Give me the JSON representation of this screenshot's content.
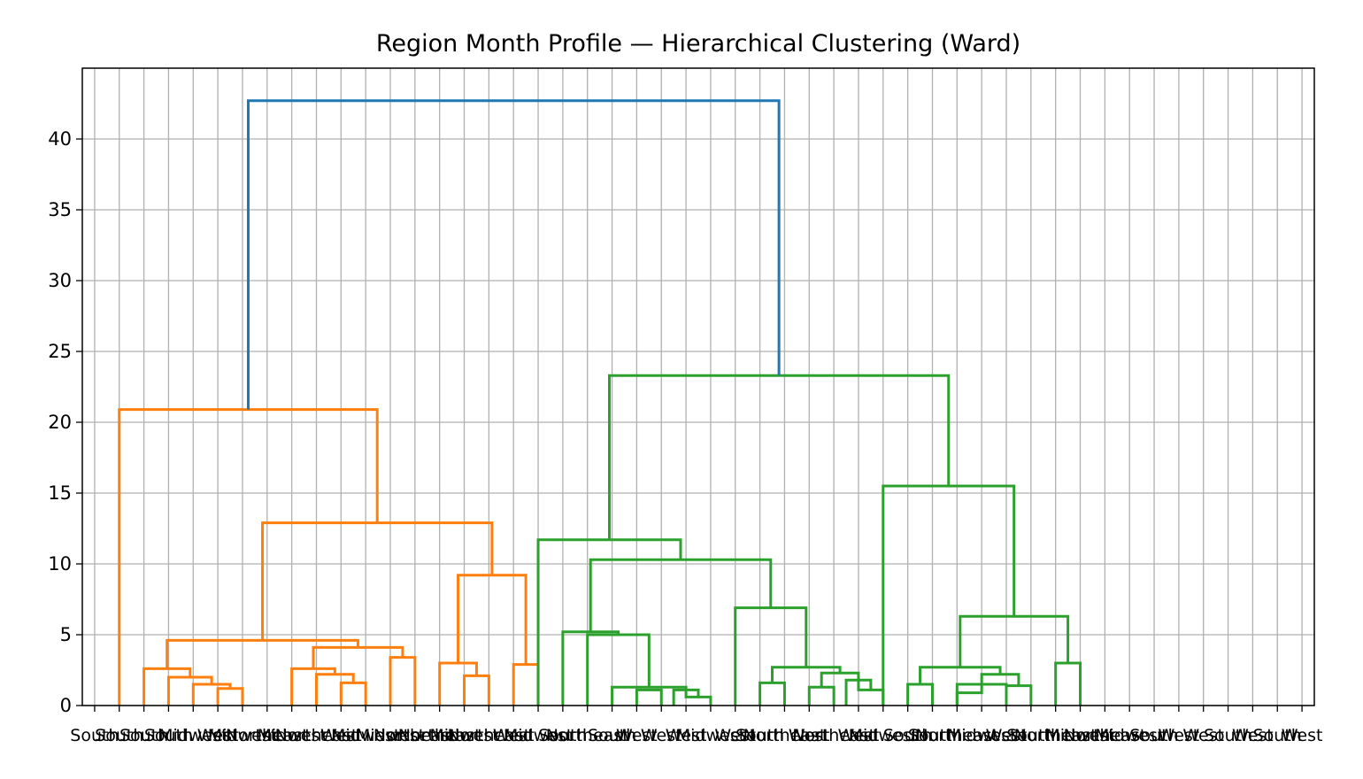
{
  "chart_data": {
    "type": "dendrogram",
    "title": "Region Month Profile — Hierarchical Clustering (Ward)",
    "xlabel": "",
    "ylabel": "",
    "ylim": [
      0,
      45
    ],
    "yticks": [
      0,
      5,
      10,
      15,
      20,
      25,
      30,
      35,
      40
    ],
    "grid": true,
    "legend": "none",
    "cluster_colors": {
      "orange": "#ff7f0e",
      "green": "#2ca02c",
      "root": "#1f77b4"
    },
    "leaves": [
      "South",
      "South",
      "South",
      "South",
      "Midwest",
      "West",
      "Midwest",
      "Northeast",
      "Midwest",
      "Northeast",
      "West",
      "Midwest",
      "Midwest",
      "Northeast",
      "Northeast",
      "Midwest",
      "Northeast",
      "West",
      "Midwest",
      "South",
      "Northeast",
      "South",
      "West",
      "West",
      "West",
      "Midwest",
      "West",
      "South",
      "Northeast",
      "West",
      "Northeast",
      "West",
      "Midwest",
      "South",
      "South",
      "Northeast",
      "Midwest",
      "West",
      "South",
      "Northeast",
      "Midwest",
      "Northeast",
      "Midwest",
      "South",
      "West",
      "West",
      "South",
      "West",
      "South",
      "West"
    ],
    "links": [
      {
        "a": 2,
        "b": 3,
        "h": 1.2,
        "color": "orange"
      },
      {
        "a": 1,
        "b": 2.5,
        "h": 1.5,
        "color": "orange"
      },
      {
        "a": 0,
        "b": 1.75,
        "h": 2.0,
        "color": "orange"
      },
      {
        "a": -1,
        "b": 0.875,
        "h": 2.6,
        "color": "orange"
      },
      {
        "a": 7,
        "b": 8,
        "h": 1.6,
        "color": "orange"
      },
      {
        "a": 6,
        "b": 7.5,
        "h": 2.2,
        "color": "orange"
      },
      {
        "a": 5,
        "b": 6.75,
        "h": 2.6,
        "color": "orange"
      },
      {
        "a": 9,
        "b": 10,
        "h": 3.4,
        "color": "orange"
      },
      {
        "a": 5.875,
        "b": 9.5,
        "h": 4.1,
        "color": "orange"
      },
      {
        "a": -0.0625,
        "b": 7.6875,
        "h": 4.6,
        "color": "orange"
      },
      {
        "a": 12,
        "b": 13,
        "h": 2.1,
        "color": "orange"
      },
      {
        "a": 11,
        "b": 12.5,
        "h": 3.0,
        "color": "orange"
      },
      {
        "a": 14,
        "b": 15,
        "h": 2.9,
        "color": "orange"
      },
      {
        "a": 11.75,
        "b": 14.5,
        "h": 9.2,
        "color": "orange"
      },
      {
        "a": 3.8125,
        "b": 13.125,
        "h": 12.9,
        "color": "orange"
      },
      {
        "a": -2,
        "b": 8.46875,
        "h": 20.9,
        "color": "orange"
      },
      {
        "a": 19,
        "b": 20,
        "h": 1.1,
        "color": "green"
      },
      {
        "a": 21,
        "b": 22,
        "h": 0.6,
        "color": "green"
      },
      {
        "a": 20.5,
        "b": 21.5,
        "h": 1.1,
        "color": "green"
      },
      {
        "a": 18,
        "b": 21,
        "h": 1.3,
        "color": "green"
      },
      {
        "a": 17,
        "b": 19.5,
        "h": 5.0,
        "color": "green"
      },
      {
        "a": 16,
        "b": 18.25,
        "h": 5.2,
        "color": "green"
      },
      {
        "a": 24,
        "b": 25,
        "h": 1.6,
        "color": "green"
      },
      {
        "a": 26,
        "b": 27,
        "h": 1.3,
        "color": "green"
      },
      {
        "a": 28,
        "b": 29,
        "h": 1.1,
        "color": "green"
      },
      {
        "a": 27.5,
        "b": 28.5,
        "h": 1.8,
        "color": "green"
      },
      {
        "a": 26.5,
        "b": 28,
        "h": 2.3,
        "color": "green"
      },
      {
        "a": 24.5,
        "b": 27.25,
        "h": 2.7,
        "color": "green"
      },
      {
        "a": 23,
        "b": 25.875,
        "h": 6.9,
        "color": "green"
      },
      {
        "a": 17.125,
        "b": 24.4375,
        "h": 10.3,
        "color": "green"
      },
      {
        "a": 15,
        "b": 20.78125,
        "h": 11.7,
        "color": "green"
      },
      {
        "a": 30,
        "b": 31,
        "h": 1.5,
        "color": "green"
      },
      {
        "a": 32,
        "b": 33,
        "h": 0.9,
        "color": "green"
      },
      {
        "a": 32,
        "b": 34,
        "h": 1.5,
        "color": "green"
      },
      {
        "a": 34,
        "b": 35,
        "h": 1.4,
        "color": "green"
      },
      {
        "a": 33,
        "b": 34.5,
        "h": 2.2,
        "color": "green"
      },
      {
        "a": 30.5,
        "b": 33.75,
        "h": 2.7,
        "color": "green"
      },
      {
        "a": 36,
        "b": 37,
        "h": 3.0,
        "color": "green"
      },
      {
        "a": 32.125,
        "b": 36.5,
        "h": 6.3,
        "color": "green"
      },
      {
        "a": 29,
        "b": 34.3125,
        "h": 15.5,
        "color": "green"
      },
      {
        "a": 17.890625,
        "b": 31.65625,
        "h": 23.3,
        "color": "green"
      },
      {
        "a": 3.234375,
        "b": 24.7734375,
        "h": 42.7,
        "color": "root"
      }
    ]
  }
}
